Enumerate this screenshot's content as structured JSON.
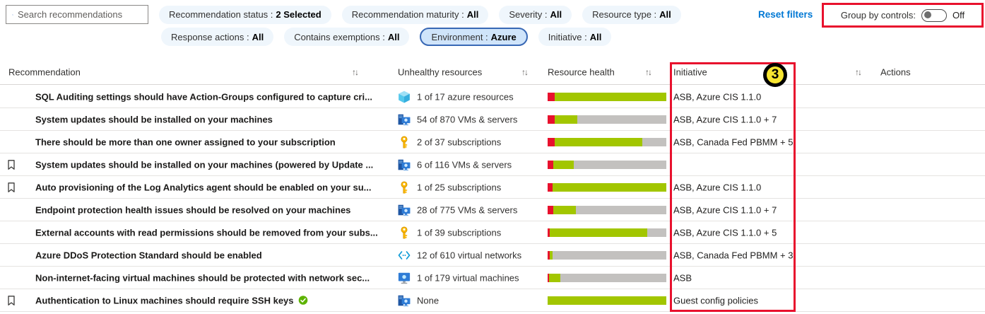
{
  "colors": {
    "annotation_red": "#e8112d",
    "badge_yellow": "#f7e531",
    "bar_red": "#e8112d",
    "bar_green": "#a2c600",
    "bar_gray": "#c3c1bf",
    "link_blue": "#0078d4",
    "pill_bg": "#eff6fc",
    "pill_selected_bg": "#cfe4fa",
    "pill_selected_border": "#3868b5"
  },
  "filters": {
    "search_placeholder": "Search recommendations",
    "row1": [
      {
        "label": "Recommendation status :",
        "value": "2 Selected"
      },
      {
        "label": "Recommendation maturity :",
        "value": "All"
      },
      {
        "label": "Severity :",
        "value": "All"
      },
      {
        "label": "Resource type :",
        "value": "All"
      }
    ],
    "row2": [
      {
        "label": "Response actions :",
        "value": "All"
      },
      {
        "label": "Contains exemptions :",
        "value": "All"
      },
      {
        "label": "Environment :",
        "value": "Azure",
        "selected": true
      },
      {
        "label": "Initiative :",
        "value": "All"
      }
    ],
    "reset_label": "Reset filters",
    "group_by_controls_label": "Group by controls:",
    "group_by_controls_state": "Off"
  },
  "annotation": {
    "badge": "3"
  },
  "table": {
    "sort_icon": "↑↓",
    "headers": {
      "recommendation": "Recommendation",
      "unhealthy": "Unhealthy resources",
      "resource_health": "Resource health",
      "initiative": "Initiative",
      "actions": "Actions"
    },
    "rows": [
      {
        "bookmarked": false,
        "title": "SQL Auditing settings should have Action-Groups configured to capture cri...",
        "icon": "azure-resource-icon",
        "unhealthy": "1 of 17 azure resources",
        "bar": {
          "red": 6,
          "green": 94,
          "gray": 0
        },
        "initiative": "ASB, Azure CIS 1.1.0"
      },
      {
        "bookmarked": false,
        "title": "System updates should be installed on your machines",
        "icon": "vm-server-icon",
        "unhealthy": "54 of 870 VMs & servers",
        "bar": {
          "red": 6,
          "green": 19,
          "gray": 75
        },
        "initiative": "ASB, Azure CIS 1.1.0 + 7"
      },
      {
        "bookmarked": false,
        "title": "There should be more than one owner assigned to your subscription",
        "icon": "subscription-key-icon",
        "unhealthy": "2 of 37 subscriptions",
        "bar": {
          "red": 6,
          "green": 74,
          "gray": 20
        },
        "initiative": "ASB, Canada Fed PBMM + 5"
      },
      {
        "bookmarked": true,
        "title": "System updates should be installed on your machines (powered by Update ...",
        "icon": "vm-server-icon",
        "unhealthy": "6 of 116 VMs & servers",
        "bar": {
          "red": 5,
          "green": 17,
          "gray": 78
        },
        "initiative": ""
      },
      {
        "bookmarked": true,
        "title": "Auto provisioning of the Log Analytics agent should be enabled on your su...",
        "icon": "subscription-key-icon",
        "unhealthy": "1 of 25 subscriptions",
        "bar": {
          "red": 4,
          "green": 96,
          "gray": 0
        },
        "initiative": "ASB, Azure CIS 1.1.0"
      },
      {
        "bookmarked": false,
        "title": "Endpoint protection health issues should be resolved on your machines",
        "icon": "vm-server-icon",
        "unhealthy": "28 of 775 VMs & servers",
        "bar": {
          "red": 5,
          "green": 19,
          "gray": 76
        },
        "initiative": "ASB, Azure CIS 1.1.0 + 7"
      },
      {
        "bookmarked": false,
        "title": "External accounts with read permissions should be removed from your subs...",
        "icon": "subscription-key-icon",
        "unhealthy": "1 of 39 subscriptions",
        "bar": {
          "red": 2,
          "green": 82,
          "gray": 16
        },
        "initiative": "ASB, Azure CIS 1.1.0 + 5"
      },
      {
        "bookmarked": false,
        "title": "Azure DDoS Protection Standard should be enabled",
        "icon": "virtual-network-icon",
        "unhealthy": "12 of 610 virtual networks",
        "bar": {
          "red": 2,
          "green": 2,
          "gray": 96
        },
        "initiative": "ASB, Canada Fed PBMM + 3"
      },
      {
        "bookmarked": false,
        "title": "Non-internet-facing virtual machines should be protected with network sec...",
        "icon": "virtual-machine-icon",
        "unhealthy": "1 of 179 virtual machines",
        "bar": {
          "red": 1,
          "green": 10,
          "gray": 89
        },
        "initiative": "ASB"
      },
      {
        "bookmarked": true,
        "title": "Authentication to Linux machines should require SSH keys",
        "verified": true,
        "icon": "vm-server-icon",
        "unhealthy": "None",
        "bar": {
          "red": 0,
          "green": 100,
          "gray": 0
        },
        "initiative": "Guest config policies"
      }
    ]
  }
}
